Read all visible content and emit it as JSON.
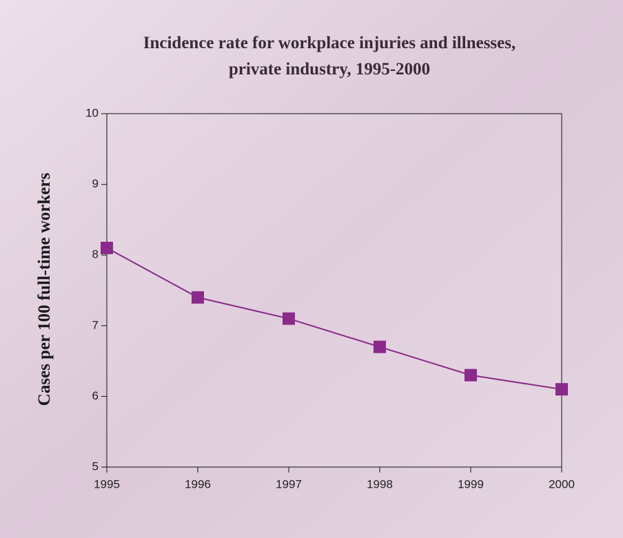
{
  "chart_data": {
    "type": "line",
    "title": "Incidence rate for workplace injuries and illnesses,",
    "subtitle": "private industry, 1995-2000",
    "y_label": "Cases per 100 full-time workers",
    "x": [
      1995,
      1996,
      1997,
      1998,
      1999,
      2000
    ],
    "series": [
      {
        "name": "Incidence rate",
        "color": "#8a2a8a",
        "values": [
          8.1,
          7.4,
          7.1,
          6.7,
          6.3,
          6.1
        ]
      }
    ],
    "xlim": [
      1995,
      2000
    ],
    "xticks": [
      1995,
      1996,
      1997,
      1998,
      1999,
      2000
    ],
    "ylim": [
      5,
      10
    ],
    "yticks": [
      5,
      6,
      7,
      8,
      9,
      10
    ]
  }
}
